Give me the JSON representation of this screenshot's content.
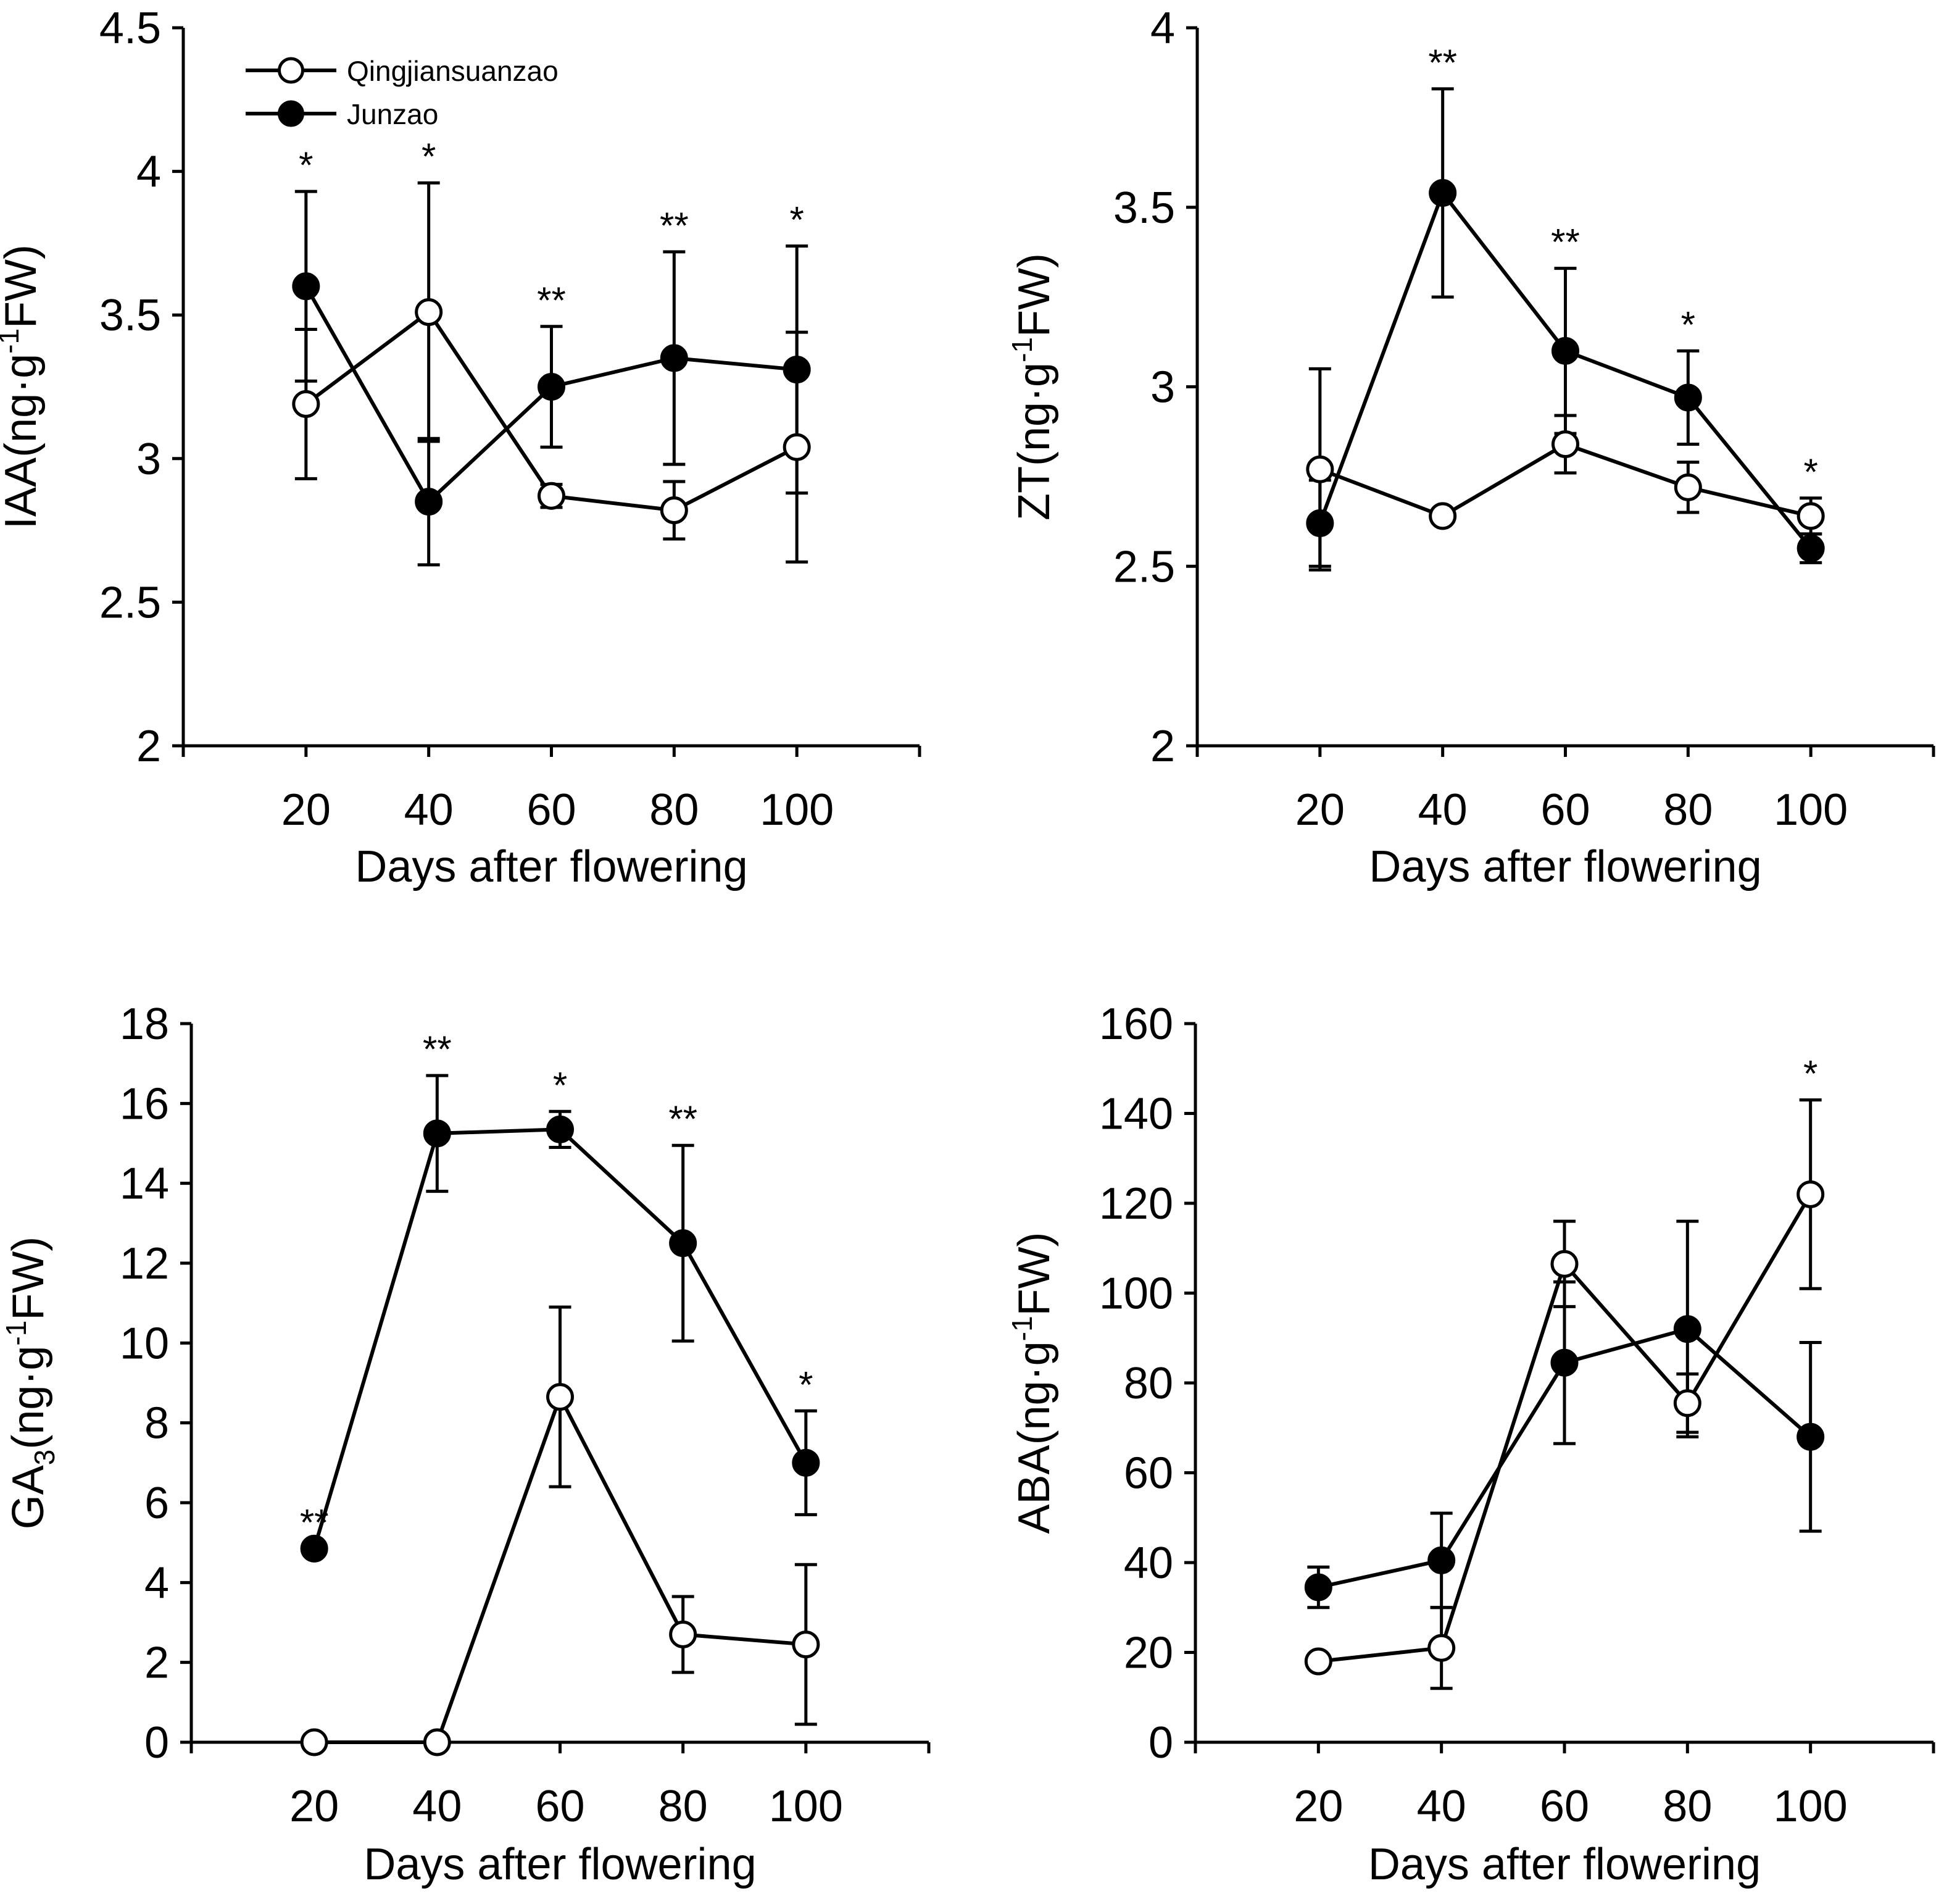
{
  "legend": {
    "series_a": "Qingjiansuanzao",
    "series_b": "Junzao"
  },
  "chart_data": [
    {
      "id": "iaa",
      "type": "line",
      "ylabel": {
        "base": "IAA(ng·g",
        "sup": "-1",
        "rest": "FW)"
      },
      "xlabel": "Days after flowering",
      "x": [
        20,
        40,
        60,
        80,
        100
      ],
      "xlim": [
        0,
        120
      ],
      "ylim": [
        2,
        4.5
      ],
      "yticks": [
        2,
        2.5,
        3,
        3.5,
        4,
        4.5
      ],
      "ytick_labels": [
        "2",
        "2.5",
        "3",
        "3.5",
        "4",
        "4.5"
      ],
      "series": [
        {
          "name": "Qingjiansuanzao",
          "marker": "open-circle",
          "values": [
            3.19,
            3.51,
            2.87,
            2.82,
            3.04
          ],
          "errors": [
            0.26,
            0.45,
            0.04,
            0.1,
            0.4
          ]
        },
        {
          "name": "Junzao",
          "marker": "filled-circle",
          "values": [
            3.6,
            2.85,
            3.25,
            3.35,
            3.31
          ],
          "errors": [
            0.33,
            0.22,
            0.21,
            0.37,
            0.43
          ]
        }
      ],
      "significance": [
        "*",
        "*",
        "**",
        "**",
        "*"
      ]
    },
    {
      "id": "zt",
      "type": "line",
      "ylabel": {
        "base": "ZT(ng·g",
        "sup": "-1",
        "rest": "FW)"
      },
      "xlabel": "Days after flowering",
      "x": [
        20,
        40,
        60,
        80,
        100
      ],
      "xlim": [
        0,
        120
      ],
      "ylim": [
        2,
        4
      ],
      "yticks": [
        2,
        2.5,
        3,
        3.5,
        4
      ],
      "ytick_labels": [
        "2",
        "2.5",
        "3",
        "3.5",
        "4"
      ],
      "series": [
        {
          "name": "Qingjiansuanzao",
          "marker": "open-circle",
          "values": [
            2.77,
            2.64,
            2.84,
            2.72,
            2.64
          ],
          "errors": [
            0.28,
            0.0,
            0.08,
            0.07,
            0.05
          ]
        },
        {
          "name": "Junzao",
          "marker": "filled-circle",
          "values": [
            2.62,
            3.54,
            3.1,
            2.97,
            2.55
          ],
          "errors": [
            0.12,
            0.29,
            0.23,
            0.13,
            0.04
          ]
        }
      ],
      "significance": [
        "",
        "**",
        "**",
        "*",
        "*"
      ]
    },
    {
      "id": "ga3",
      "type": "line",
      "ylabel": {
        "base": "GA",
        "sub": "3",
        "mid": "(ng·g",
        "sup": "-1",
        "rest": "FW)"
      },
      "xlabel": "Days after flowering",
      "x": [
        20,
        40,
        60,
        80,
        100
      ],
      "xlim": [
        0,
        120
      ],
      "ylim": [
        0,
        18
      ],
      "yticks": [
        0,
        2,
        4,
        6,
        8,
        10,
        12,
        14,
        16,
        18
      ],
      "ytick_labels": [
        "0",
        "2",
        "4",
        "6",
        "8",
        "10",
        "12",
        "14",
        "16",
        "18"
      ],
      "series": [
        {
          "name": "Qingjiansuanzao",
          "marker": "open-circle",
          "values": [
            0.0,
            0.0,
            8.65,
            2.7,
            2.45
          ],
          "errors": [
            0,
            0,
            2.25,
            0.95,
            2.0
          ]
        },
        {
          "name": "Junzao",
          "marker": "filled-circle",
          "values": [
            4.85,
            15.25,
            15.35,
            12.5,
            7.0
          ],
          "errors": [
            0,
            1.45,
            0.45,
            2.45,
            1.3
          ]
        }
      ],
      "significance": [
        "**",
        "**",
        "*",
        "**",
        "*"
      ]
    },
    {
      "id": "aba",
      "type": "line",
      "ylabel": {
        "base": "ABA(ng·g",
        "sup": "-1",
        "rest": "FW)"
      },
      "xlabel": "Days after flowering",
      "x": [
        20,
        40,
        60,
        80,
        100
      ],
      "xlim": [
        0,
        120
      ],
      "ylim": [
        0,
        160
      ],
      "yticks": [
        0,
        20,
        40,
        60,
        80,
        100,
        120,
        140,
        160
      ],
      "ytick_labels": [
        "0",
        "20",
        "40",
        "60",
        "80",
        "100",
        "120",
        "140",
        "160"
      ],
      "series": [
        {
          "name": "Qingjiansuanzao",
          "marker": "open-circle",
          "values": [
            18,
            21,
            106.5,
            75.5,
            122
          ],
          "errors": [
            0,
            9,
            9.5,
            6.5,
            21
          ]
        },
        {
          "name": "Junzao",
          "marker": "filled-circle",
          "values": [
            34.5,
            40.5,
            84.5,
            92,
            68
          ],
          "errors": [
            4.5,
            10.5,
            18,
            24,
            21
          ]
        }
      ],
      "significance": [
        "",
        "",
        "",
        "",
        "*"
      ]
    }
  ]
}
